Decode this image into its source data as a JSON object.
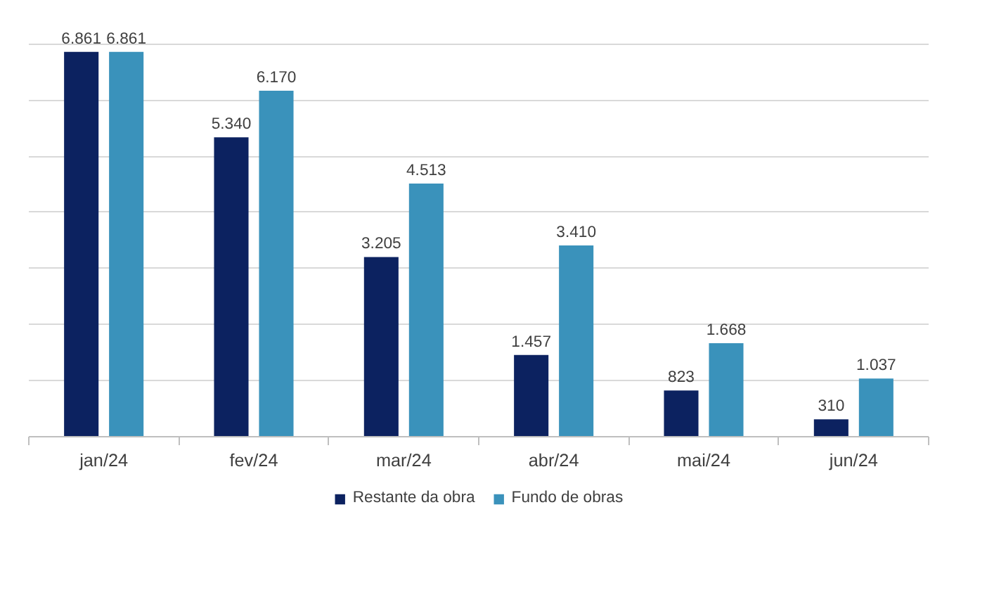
{
  "chart_data": {
    "type": "bar",
    "categories": [
      "jan/24",
      "fev/24",
      "mar/24",
      "abr/24",
      "mai/24",
      "jun/24"
    ],
    "series": [
      {
        "name": "Restante da obra",
        "color": "#0c2260",
        "values": [
          6861,
          5340,
          3205,
          1457,
          823,
          310
        ],
        "value_labels": [
          "6.861",
          "5.340",
          "3.205",
          "1.457",
          "823",
          "310"
        ]
      },
      {
        "name": "Fundo de obras",
        "color": "#3a92bb",
        "values": [
          6861,
          6170,
          4513,
          3410,
          1668,
          1037
        ],
        "value_labels": [
          "6.861",
          "6.170",
          "4.513",
          "3.410",
          "1.668",
          "1.037"
        ]
      }
    ],
    "tick_labels": "x",
    "grid": "y",
    "legend": "bottom"
  }
}
